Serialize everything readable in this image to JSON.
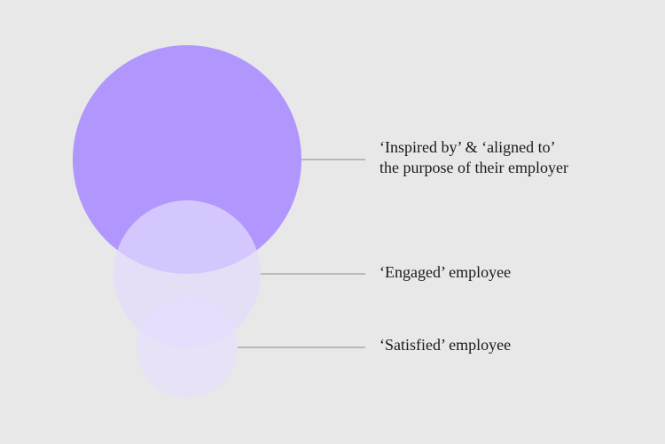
{
  "nodes": [
    {
      "label": [
        "‘Inspired by’ & ‘aligned to’",
        "the purpose of their employer"
      ]
    },
    {
      "label": [
        "‘Engaged’ employee"
      ]
    },
    {
      "label": [
        "‘Satisfied’ employee"
      ]
    }
  ]
}
